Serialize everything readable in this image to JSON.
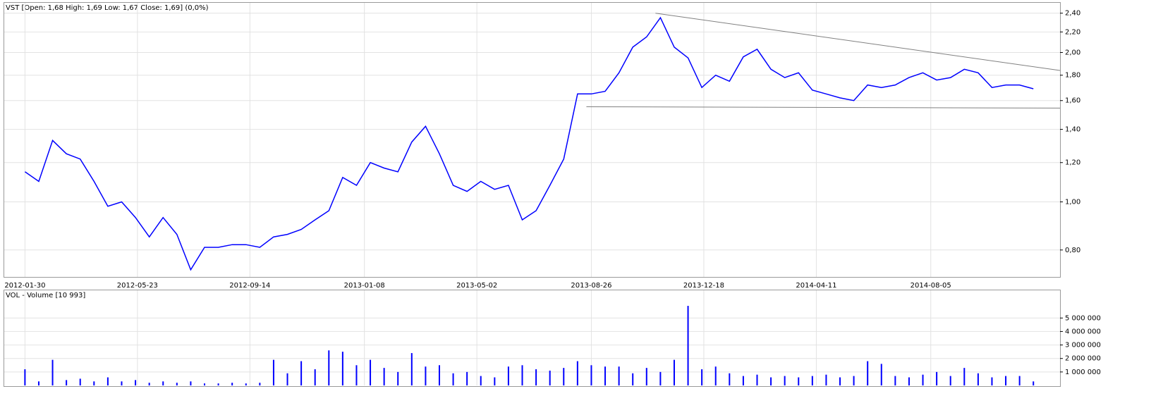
{
  "chart_data": [
    {
      "type": "line",
      "title": "VST [Open: 1,68  High: 1,69  Low: 1,67  Close: 1,69] (0,0%)",
      "color": "#0000ff",
      "log_scale": true,
      "grid": true,
      "x": [
        "2012-01-30",
        "2012-02-13",
        "2012-02-27",
        "2012-03-12",
        "2012-03-26",
        "2012-04-09",
        "2012-04-23",
        "2012-05-07",
        "2012-05-21",
        "2012-06-04",
        "2012-06-18",
        "2012-07-02",
        "2012-07-16",
        "2012-07-30",
        "2012-08-13",
        "2012-08-27",
        "2012-09-10",
        "2012-09-24",
        "2012-10-08",
        "2012-10-22",
        "2012-11-05",
        "2012-11-19",
        "2012-12-03",
        "2012-12-17",
        "2012-12-31",
        "2013-01-14",
        "2013-01-28",
        "2013-02-11",
        "2013-02-25",
        "2013-03-11",
        "2013-03-25",
        "2013-04-08",
        "2013-04-22",
        "2013-05-06",
        "2013-05-20",
        "2013-06-03",
        "2013-06-17",
        "2013-07-01",
        "2013-07-15",
        "2013-07-29",
        "2013-08-12",
        "2013-08-26",
        "2013-09-09",
        "2013-09-23",
        "2013-10-07",
        "2013-10-21",
        "2013-11-04",
        "2013-11-18",
        "2013-12-02",
        "2013-12-16",
        "2013-12-30",
        "2014-01-13",
        "2014-01-27",
        "2014-02-10",
        "2014-02-24",
        "2014-03-10",
        "2014-03-24",
        "2014-04-07",
        "2014-04-21",
        "2014-05-05",
        "2014-05-19",
        "2014-06-02",
        "2014-06-16",
        "2014-06-30",
        "2014-07-14",
        "2014-07-28",
        "2014-08-11",
        "2014-08-25",
        "2014-09-08",
        "2014-09-22",
        "2014-10-06",
        "2014-10-20",
        "2014-11-03",
        "2014-11-17"
      ],
      "values": [
        1.15,
        1.1,
        1.33,
        1.25,
        1.22,
        1.1,
        0.98,
        1.0,
        0.93,
        0.85,
        0.93,
        0.86,
        0.73,
        0.81,
        0.81,
        0.82,
        0.82,
        0.81,
        0.85,
        0.86,
        0.88,
        0.92,
        0.96,
        1.12,
        1.08,
        1.2,
        1.17,
        1.15,
        1.32,
        1.42,
        1.25,
        1.08,
        1.05,
        1.1,
        1.06,
        1.08,
        0.92,
        0.96,
        1.08,
        1.22,
        1.65,
        1.65,
        1.67,
        1.82,
        2.05,
        2.15,
        2.35,
        2.05,
        1.95,
        1.7,
        1.8,
        1.75,
        1.96,
        2.03,
        1.85,
        1.78,
        1.82,
        1.68,
        1.65,
        1.62,
        1.6,
        1.72,
        1.7,
        1.72,
        1.78,
        1.82,
        1.76,
        1.78,
        1.85,
        1.82,
        1.7,
        1.72,
        1.72,
        1.69
      ],
      "xlim": [
        "2012-01-09",
        "2014-12-14"
      ],
      "xticks": [
        "2012-01-30",
        "2012-05-23",
        "2012-09-14",
        "2013-01-08",
        "2013-05-02",
        "2013-08-26",
        "2013-12-18",
        "2014-04-11",
        "2014-08-05"
      ],
      "ylim": [
        0.706,
        2.51
      ],
      "yticks": [
        {
          "value": 0.8,
          "label": "0,80"
        },
        {
          "value": 1.0,
          "label": "1,00"
        },
        {
          "value": 1.2,
          "label": "1,20"
        },
        {
          "value": 1.4,
          "label": "1,40"
        },
        {
          "value": 1.6,
          "label": "1,60"
        },
        {
          "value": 1.8,
          "label": "1,80"
        },
        {
          "value": 2.0,
          "label": "2,00"
        },
        {
          "value": 2.2,
          "label": "2,20"
        },
        {
          "value": 2.4,
          "label": "2,40"
        }
      ],
      "trendlines": [
        {
          "x": [
            "2013-10-30",
            "2014-12-14"
          ],
          "y": [
            2.4,
            1.84
          ]
        },
        {
          "x": [
            "2013-08-21",
            "2014-12-14"
          ],
          "y": [
            1.555,
            1.545
          ]
        }
      ]
    },
    {
      "type": "bar",
      "title": "VOL - Volume [10 993]",
      "color": "#0000ff",
      "grid": true,
      "values": [
        1200000,
        300000,
        1900000,
        400000,
        500000,
        300000,
        600000,
        300000,
        400000,
        200000,
        300000,
        200000,
        300000,
        150000,
        150000,
        200000,
        150000,
        200000,
        1900000,
        900000,
        1800000,
        1200000,
        2600000,
        2500000,
        1500000,
        1900000,
        1300000,
        1000000,
        2400000,
        1400000,
        1500000,
        900000,
        1000000,
        700000,
        600000,
        1400000,
        1500000,
        1200000,
        1100000,
        1300000,
        1800000,
        1500000,
        1400000,
        1400000,
        900000,
        1300000,
        1000000,
        1900000,
        5900000,
        1200000,
        1400000,
        900000,
        700000,
        800000,
        600000,
        700000,
        600000,
        700000,
        800000,
        600000,
        700000,
        1800000,
        1600000,
        700000,
        600000,
        800000,
        1000000,
        700000,
        1300000,
        900000,
        600000,
        700000,
        700000,
        300000
      ],
      "ylim": [
        0,
        7000000
      ],
      "yticks": [
        {
          "value": 1000000,
          "label": "1 000 000"
        },
        {
          "value": 2000000,
          "label": "2 000 000"
        },
        {
          "value": 3000000,
          "label": "3 000 000"
        },
        {
          "value": 4000000,
          "label": "4 000 000"
        },
        {
          "value": 5000000,
          "label": "5 000 000"
        }
      ]
    }
  ]
}
